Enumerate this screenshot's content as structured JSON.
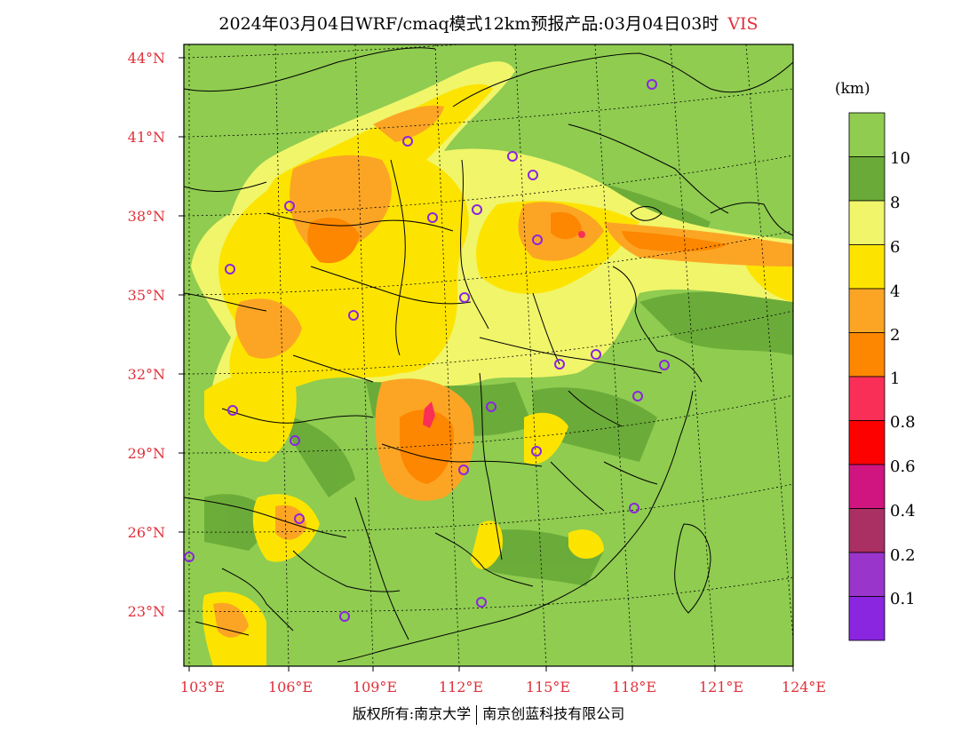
{
  "title": {
    "main": "2024年03月04日WRF/cmaq模式12km预报产品:03月04日03时",
    "variable": "VIS"
  },
  "axes": {
    "lat_labels": [
      "44°N",
      "41°N",
      "38°N",
      "35°N",
      "32°N",
      "29°N",
      "26°N",
      "23°N"
    ],
    "lon_labels": [
      "103°E",
      "106°E",
      "109°E",
      "112°E",
      "115°E",
      "118°E",
      "121°E",
      "124°E"
    ]
  },
  "colorbar": {
    "unit": "(km)",
    "labels": [
      "10",
      "8",
      "6",
      "4",
      "2",
      "1",
      "0.8",
      "0.6",
      "0.4",
      "0.2",
      "0.1"
    ],
    "colors": [
      "#8fcc50",
      "#6aaa38",
      "#f0f56a",
      "#fde400",
      "#fca525",
      "#fd8700",
      "#fa2f57",
      "#fd0000",
      "#d01580",
      "#aa2f63",
      "#9a35cc",
      "#8a25e0"
    ]
  },
  "colors": {
    "land_green": "#8fcc50",
    "dark_green": "#6aaa38",
    "pale_yellow": "#f0f56a",
    "yellow": "#fde400",
    "orange_light": "#fca525",
    "orange": "#fd8700",
    "red_pink": "#fa2f57",
    "station_marker": "#8a25e0",
    "label_red": "#e0303a"
  },
  "footer": {
    "left": "版权所有:南京大学",
    "right": "南京创蓝科技有限公司"
  }
}
